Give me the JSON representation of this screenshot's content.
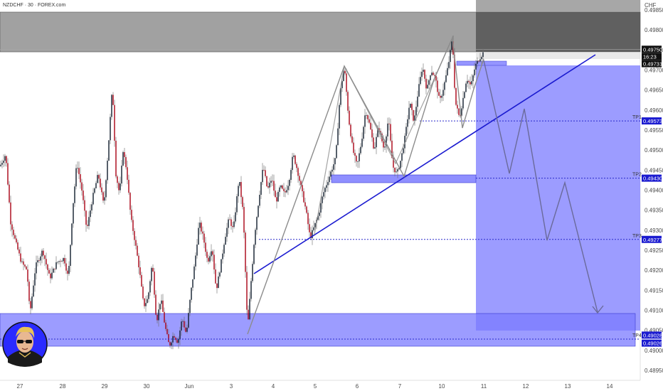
{
  "chart_data": {
    "type": "candlestick",
    "title": "NZDCHF · 30 · FOREX.com",
    "currency_label": "CHF",
    "ylim": [
      0.48925,
      0.49875
    ],
    "y_ticks": [
      "0.49850",
      "0.49800",
      "0.49750",
      "0.49700",
      "0.49650",
      "0.49600",
      "0.49550",
      "0.49500",
      "0.49450",
      "0.49400",
      "0.49350",
      "0.49300",
      "0.49250",
      "0.49200",
      "0.49150",
      "0.49100",
      "0.49050",
      "0.49000",
      "0.48950"
    ],
    "x_labels": [
      "27",
      "28",
      "29",
      "30",
      "Jun",
      "3",
      "4",
      "5",
      "6",
      "7",
      "10",
      "11",
      "12",
      "13",
      "14"
    ],
    "price_tags": {
      "current": "0.49750",
      "countdown": "16:23",
      "previous": "0.49731",
      "tp1": "0.49573",
      "tp2": "0.49430",
      "tp3": "0.49277",
      "tp4a": "0.49028",
      "tp4b": "0.49026"
    },
    "tp_labels": [
      "TP1",
      "TP2",
      "TP3",
      "TP4"
    ],
    "levels": {
      "tp1": 0.49573,
      "tp2": 0.4943,
      "tp3": 0.49277,
      "tp4": 0.49028,
      "entry": 0.4973,
      "upper_ref": 0.49752
    },
    "colors": {
      "up": "#0d1b2a",
      "down": "#a80012",
      "wick": "#6b6b6b",
      "zone_gray": "#8a8a8a",
      "zone_blue": "#7b7bff",
      "trend": "#1b1bd0",
      "dotted": "#2a2acc",
      "pattern": "#8c8c8c"
    }
  },
  "avatar": {
    "icon": "cartoon-trader-avatar"
  }
}
